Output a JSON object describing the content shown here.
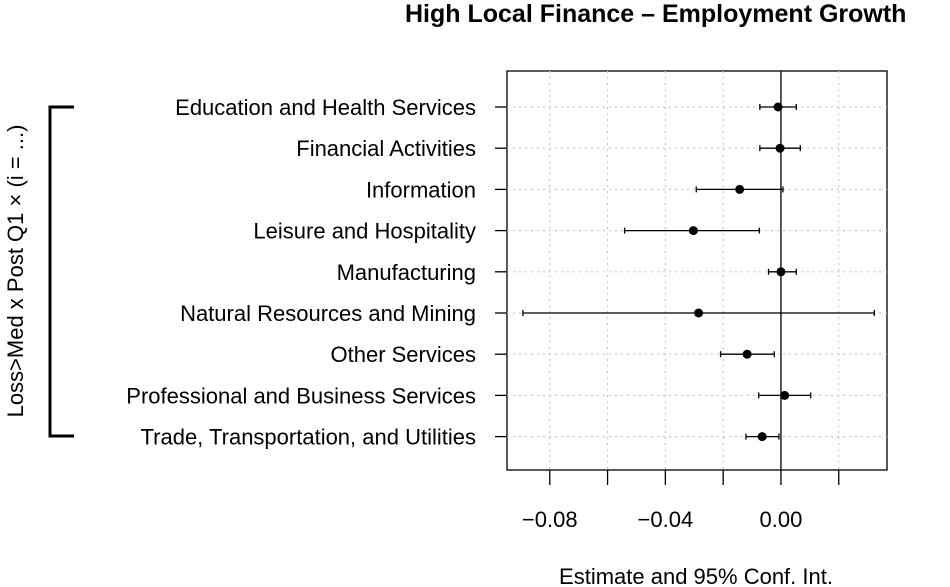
{
  "chart_data": {
    "type": "scatter",
    "title": "High Local Finance – Employment Growth",
    "xlabel": "Estimate and 95% Conf. Int.",
    "ylabel": "Loss>Med x Post Q1 × (i = ...)",
    "categories": [
      "Education and Health Services",
      "Financial Activities",
      "Information",
      "Leisure and Hospitality",
      "Manufacturing",
      "Natural Resources and Mining",
      "Other Services",
      "Professional and Business Services",
      "Trade, Transportation, and Utilities"
    ],
    "estimates": [
      -0.001,
      -0.0003,
      -0.0143,
      -0.0303,
      0.0,
      -0.0285,
      -0.0117,
      0.0013,
      -0.0065
    ],
    "ci_low": [
      -0.0073,
      -0.0073,
      -0.0293,
      -0.0541,
      -0.0043,
      -0.0893,
      -0.0209,
      -0.0077,
      -0.0121
    ],
    "ci_high": [
      0.0053,
      0.0067,
      0.0007,
      -0.0075,
      0.0053,
      0.0323,
      -0.0023,
      0.0103,
      -0.0007
    ],
    "xticks": [
      -0.08,
      -0.04,
      0.0
    ],
    "xtick_labels": [
      "−0.08",
      "−0.04",
      "0.00"
    ],
    "xlim": [
      -0.0948,
      0.0367
    ],
    "grid": true
  }
}
